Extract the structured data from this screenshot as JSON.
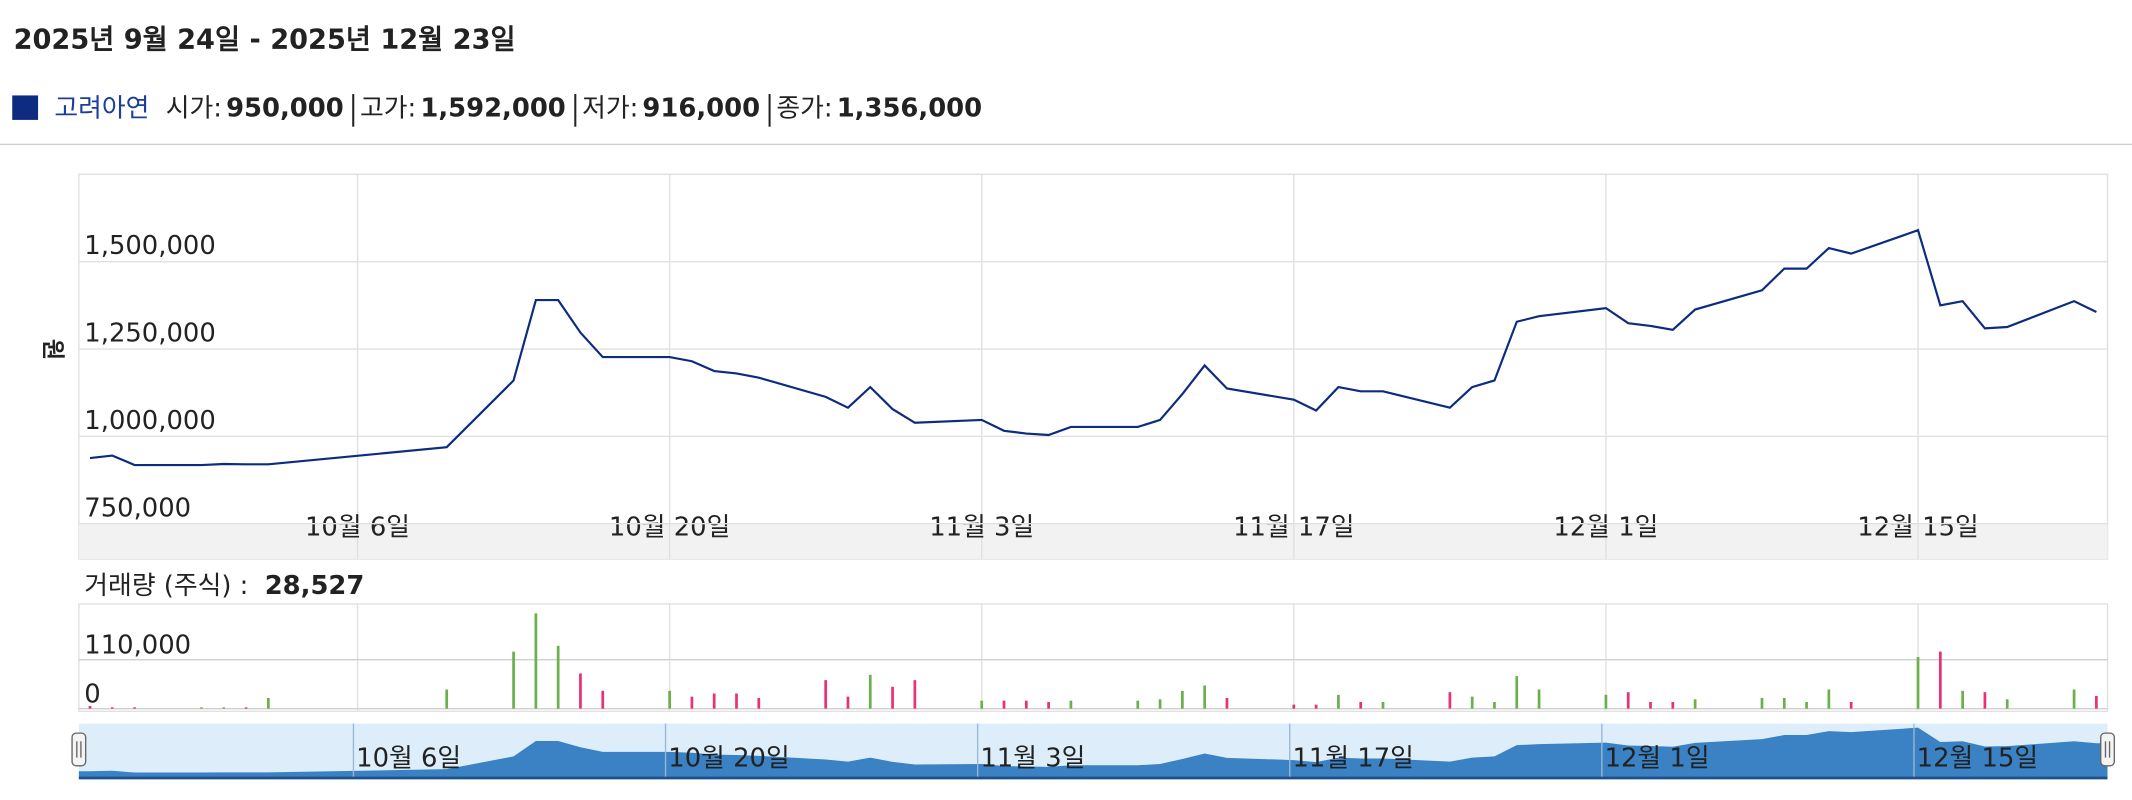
{
  "title": "2025년 9월 24일 - 2025년 12월 23일",
  "summary": [
    {
      "label": "시가:",
      "value": "950,000"
    },
    {
      "label": "고가:",
      "value": "1,592,000"
    },
    {
      "label": "저가:",
      "value": "916,000"
    },
    {
      "label": "종가:",
      "value": "1,356,000"
    }
  ],
  "chart_data": [
    {
      "type": "line",
      "ylabel": "원",
      "x": [
        0,
        1,
        2,
        5,
        6,
        7,
        8,
        16,
        19,
        20,
        21,
        22,
        23,
        26,
        27,
        28,
        29,
        30,
        33,
        34,
        35,
        36,
        37,
        40,
        41,
        42,
        43,
        44,
        47,
        48,
        49,
        50,
        51,
        54,
        55,
        56,
        57,
        58,
        61,
        62,
        63,
        64,
        65,
        68,
        69,
        70,
        71,
        72,
        75,
        76,
        77,
        78,
        79,
        82,
        83,
        84,
        85,
        86,
        89,
        90
      ],
      "series": [
        {
          "name": "고려아연",
          "color": "#0d2c80",
          "values": [
            938000,
            945000,
            918000,
            918000,
            921000,
            920000,
            920000,
            969000,
            1160000,
            1390000,
            1390000,
            1297000,
            1227000,
            1227000,
            1215000,
            1187000,
            1180000,
            1168000,
            1113000,
            1082000,
            1141000,
            1078000,
            1039000,
            1047000,
            1016000,
            1008000,
            1004000,
            1027000,
            1027000,
            1047000,
            1121000,
            1203000,
            1137000,
            1105000,
            1074000,
            1141000,
            1129000,
            1129000,
            1082000,
            1141000,
            1160000,
            1328000,
            1344000,
            1367000,
            1324000,
            1316000,
            1305000,
            1363000,
            1418000,
            1480000,
            1480000,
            1539000,
            1523000,
            1590000,
            1375000,
            1387000,
            1309000,
            1313000,
            1387000,
            1356000
          ]
        }
      ],
      "xlim": [
        -0.5,
        90.5
      ],
      "xticks": [
        {
          "value": 12,
          "label": "10월 6일"
        },
        {
          "value": 26,
          "label": "10월 20일"
        },
        {
          "value": 40,
          "label": "11월 3일"
        },
        {
          "value": 54,
          "label": "11월 17일"
        },
        {
          "value": 68,
          "label": "12월 1일"
        },
        {
          "value": 82,
          "label": "12월 15일"
        }
      ],
      "ylim": [
        750000,
        1750000
      ],
      "yticks": [
        {
          "value": 750000,
          "label": "750,000"
        },
        {
          "value": 1000000,
          "label": "1,000,000"
        },
        {
          "value": 1250000,
          "label": "1,250,000"
        },
        {
          "value": 1500000,
          "label": "1,500,000"
        }
      ],
      "grid": true
    },
    {
      "type": "bar",
      "title": "거래량 (주식) :",
      "annotation": "28,527",
      "x": [
        0,
        1,
        2,
        5,
        6,
        7,
        8,
        16,
        19,
        20,
        21,
        22,
        23,
        26,
        27,
        28,
        29,
        30,
        33,
        34,
        35,
        36,
        37,
        40,
        41,
        42,
        43,
        44,
        47,
        48,
        49,
        50,
        51,
        54,
        55,
        56,
        57,
        58,
        61,
        62,
        63,
        64,
        65,
        68,
        69,
        70,
        71,
        72,
        75,
        76,
        77,
        78,
        79,
        82,
        83,
        84,
        85,
        86,
        89,
        90
      ],
      "values": [
        6000,
        3000,
        3000,
        3000,
        3000,
        3000,
        24000,
        43000,
        128000,
        214000,
        141000,
        79000,
        40000,
        40000,
        27000,
        34000,
        34000,
        24000,
        64000,
        27000,
        76000,
        49000,
        64000,
        18000,
        18000,
        18000,
        15000,
        18000,
        18000,
        21000,
        40000,
        52000,
        24000,
        9000,
        9000,
        31000,
        15000,
        15000,
        37000,
        27000,
        15000,
        73000,
        43000,
        31000,
        37000,
        15000,
        15000,
        21000,
        24000,
        24000,
        15000,
        43000,
        15000,
        116000,
        128000,
        40000,
        37000,
        21000,
        43000,
        28527
      ],
      "colors": [
        "#e8317a",
        "#e8317a",
        "#e8317a",
        "#6ab04c",
        "#6ab04c",
        "#e8317a",
        "#6ab04c",
        "#6ab04c",
        "#6ab04c",
        "#6ab04c",
        "#6ab04c",
        "#e8317a",
        "#e8317a",
        "#6ab04c",
        "#e8317a",
        "#e8317a",
        "#e8317a",
        "#e8317a",
        "#e8317a",
        "#e8317a",
        "#6ab04c",
        "#e8317a",
        "#e8317a",
        "#6ab04c",
        "#e8317a",
        "#e8317a",
        "#e8317a",
        "#6ab04c",
        "#6ab04c",
        "#6ab04c",
        "#6ab04c",
        "#6ab04c",
        "#e8317a",
        "#e8317a",
        "#e8317a",
        "#6ab04c",
        "#e8317a",
        "#6ab04c",
        "#e8317a",
        "#6ab04c",
        "#6ab04c",
        "#6ab04c",
        "#6ab04c",
        "#6ab04c",
        "#e8317a",
        "#e8317a",
        "#e8317a",
        "#6ab04c",
        "#6ab04c",
        "#6ab04c",
        "#6ab04c",
        "#6ab04c",
        "#e8317a",
        "#6ab04c",
        "#e8317a",
        "#6ab04c",
        "#e8317a",
        "#6ab04c",
        "#6ab04c",
        "#e8317a"
      ],
      "xlim": [
        -0.5,
        90.5
      ],
      "ylim": [
        0,
        235000
      ],
      "yticks": [
        0,
        {
          "value": 110000,
          "label": "110,000"
        }
      ],
      "grid": true
    }
  ]
}
